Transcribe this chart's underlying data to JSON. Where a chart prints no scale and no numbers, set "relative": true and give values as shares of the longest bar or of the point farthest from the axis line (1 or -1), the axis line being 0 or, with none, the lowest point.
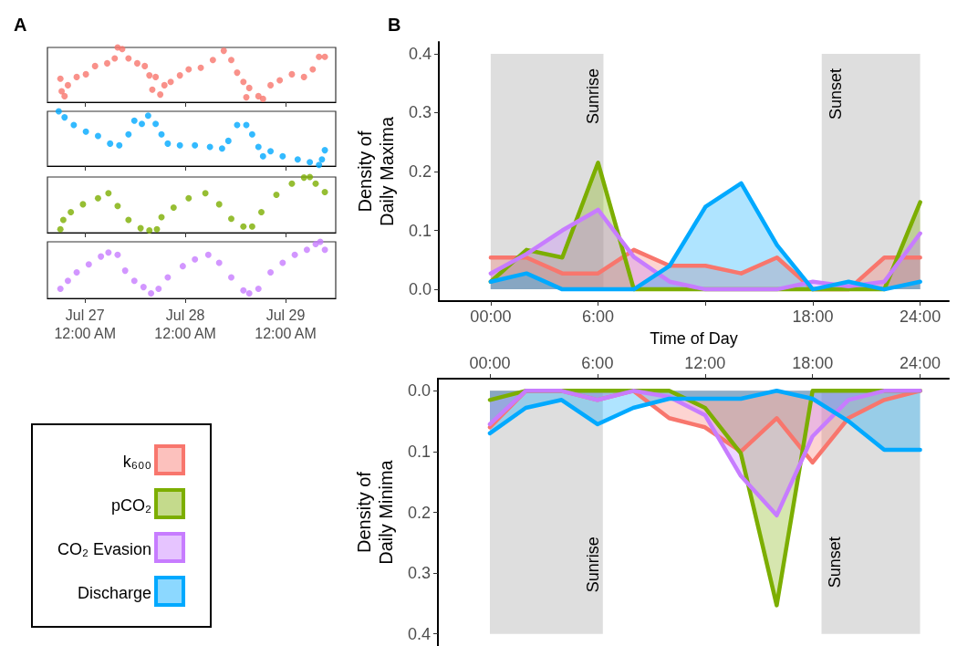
{
  "chart_data": [
    {
      "type": "scatter",
      "title": "A",
      "relative": true,
      "marker": "circle",
      "tick_labels": false,
      "xlim": [
        "--07-26T15:00",
        "--07-29T12:00"
      ],
      "xticks": [
        {
          "value": "--07-27T00:00",
          "label": null
        },
        {
          "value": "--07-28T00:00",
          "label": null
        },
        {
          "value": "--07-29T00:00",
          "label": null
        }
      ],
      "series": [
        {
          "color": "#f8766d",
          "x": [
            "--07-26T18:06",
            "--07-26T18:24",
            "--07-26T19:06",
            "--07-26T19:54",
            "--07-26T22:00",
            "--07-27T00:12",
            "--07-27T02:24",
            "--07-27T05:18",
            "--07-27T07:06",
            "--07-27T07:48",
            "--07-27T08:54",
            "--07-27T10:24",
            "--07-27T12:30",
            "--07-27T14:18",
            "--07-27T15:24",
            "--07-27T16:06",
            "--07-27T16:54",
            "--07-27T18:00",
            "--07-27T19:00",
            "--07-27T20:30",
            "--07-27T22:42",
            "--07-28T00:48",
            "--07-28T03:42",
            "--07-28T06:36",
            "--07-28T09:12",
            "--07-28T11:00",
            "--07-28T12:24",
            "--07-28T13:54",
            "--07-28T14:36",
            "--07-28T15:18",
            "--07-28T17:30",
            "--07-28T18:36",
            "--07-28T20:24",
            "--07-28T22:36",
            "--07-29T01:30",
            "--07-29T04:24",
            "--07-29T06:30",
            "--07-29T08:00",
            "--07-29T09:24"
          ],
          "values": [
            0.43,
            0.2,
            0.11,
            0.31,
            0.46,
            0.51,
            0.66,
            0.71,
            0.8,
            1,
            0.97,
            0.8,
            0.71,
            0.66,
            0.49,
            0.23,
            0.46,
            0.14,
            0.31,
            0.37,
            0.49,
            0.6,
            0.63,
            0.77,
            0.94,
            0.77,
            0.54,
            0.37,
            0.09,
            0.26,
            0.11,
            0.06,
            0.31,
            0.4,
            0.51,
            0.46,
            0.6,
            0.83,
            0.83
          ]
        }
      ]
    },
    {
      "type": "scatter",
      "relative": true,
      "marker": "circle",
      "tick_labels": false,
      "xlim": [
        "--07-26T15:00",
        "--07-29T12:00"
      ],
      "xticks": [
        {
          "value": "--07-27T00:00",
          "label": null
        },
        {
          "value": "--07-28T00:00",
          "label": null
        },
        {
          "value": "--07-29T00:00",
          "label": null
        }
      ],
      "series": [
        {
          "color": "#00a9ff",
          "x": [
            "--07-26T17:42",
            "--07-26T19:06",
            "--07-26T21:18",
            "--07-27T00:12",
            "--07-27T03:06",
            "--07-27T06:00",
            "--07-27T08:12",
            "--07-27T10:24",
            "--07-27T11:48",
            "--07-27T13:36",
            "--07-27T15:06",
            "--07-27T16:54",
            "--07-27T18:18",
            "--07-27T19:48",
            "--07-27T22:42",
            "--07-28T02:18",
            "--07-28T05:54",
            "--07-28T08:48",
            "--07-28T10:18",
            "--07-28T12:24",
            "--07-28T14:36",
            "--07-28T16:00",
            "--07-28T17:30",
            "--07-28T18:36",
            "--07-28T20:24",
            "--07-28T23:18",
            "--07-29T02:54",
            "--07-29T05:48",
            "--07-29T08:00",
            "--07-29T08:42",
            "--07-29T09:24"
          ],
          "values": [
            1,
            0.89,
            0.75,
            0.63,
            0.55,
            0.41,
            0.38,
            0.58,
            0.83,
            0.77,
            0.92,
            0.77,
            0.58,
            0.41,
            0.38,
            0.38,
            0.35,
            0.32,
            0.46,
            0.75,
            0.75,
            0.58,
            0.35,
            0.18,
            0.27,
            0.18,
            0.12,
            0.07,
            0.02,
            0.12,
            0.29
          ]
        }
      ]
    },
    {
      "type": "scatter",
      "relative": true,
      "marker": "circle",
      "tick_labels": false,
      "xlim": [
        "--07-26T15:00",
        "--07-29T12:00"
      ],
      "xticks": [
        {
          "value": "--07-27T00:00",
          "label": null
        },
        {
          "value": "--07-28T00:00",
          "label": null
        },
        {
          "value": "--07-29T00:00",
          "label": null
        }
      ],
      "series": [
        {
          "color": "#7cae00",
          "x": [
            "--07-26T18:06",
            "--07-26T18:48",
            "--07-26T20:36",
            "--07-26T23:30",
            "--07-27T03:06",
            "--07-27T05:36",
            "--07-27T07:48",
            "--07-27T10:24",
            "--07-27T13:18",
            "--07-27T15:24",
            "--07-27T17:12",
            "--07-27T18:18",
            "--07-27T21:12",
            "--07-28T00:48",
            "--07-28T04:48",
            "--07-28T08:06",
            "--07-28T11:00",
            "--07-28T13:54",
            "--07-28T16:00",
            "--07-28T18:12",
            "--07-28T21:48",
            "--07-29T01:30",
            "--07-29T04:24",
            "--07-29T05:48",
            "--07-29T07:12",
            "--07-29T09:24"
          ],
          "values": [
            0.06,
            0.23,
            0.37,
            0.51,
            0.62,
            0.71,
            0.48,
            0.23,
            0.08,
            0.04,
            0.06,
            0.28,
            0.45,
            0.62,
            0.71,
            0.51,
            0.25,
            0.11,
            0.11,
            0.37,
            0.68,
            0.88,
            0.99,
            1,
            0.88,
            0.73
          ]
        }
      ]
    },
    {
      "type": "scatter",
      "relative": true,
      "marker": "circle",
      "tick_labels": "x",
      "xlim": [
        "--07-26T15:00",
        "--07-29T12:00"
      ],
      "xticks": [
        {
          "value": "--07-27T00:00",
          "label": "Jul 27\n12:00 AM"
        },
        {
          "value": "--07-28T00:00",
          "label": "Jul 28\n12:00 AM"
        },
        {
          "value": "--07-29T00:00",
          "label": "Jul 29\n12:00 AM"
        }
      ],
      "series": [
        {
          "color": "#c77cff",
          "x": [
            "--07-26T18:06",
            "--07-26T19:54",
            "--07-26T22:00",
            "--07-27T00:54",
            "--07-27T03:48",
            "--07-27T05:36",
            "--07-27T07:48",
            "--07-27T09:36",
            "--07-27T11:48",
            "--07-27T14:00",
            "--07-27T15:48",
            "--07-27T17:36",
            "--07-27T19:48",
            "--07-27T23:24",
            "--07-28T02:18",
            "--07-28T05:30",
            "--07-28T08:06",
            "--07-28T11:00",
            "--07-28T13:54",
            "--07-28T15:18",
            "--07-28T17:30",
            "--07-28T20:24",
            "--07-28T23:18",
            "--07-29T02:12",
            "--07-29T05:06",
            "--07-29T07:12",
            "--07-29T08:18",
            "--07-29T09:24"
          ],
          "values": [
            0.17,
            0.31,
            0.46,
            0.6,
            0.74,
            0.81,
            0.77,
            0.49,
            0.31,
            0.2,
            0.09,
            0.17,
            0.37,
            0.57,
            0.69,
            0.77,
            0.63,
            0.37,
            0.14,
            0.09,
            0.17,
            0.46,
            0.63,
            0.77,
            0.86,
            0.96,
            1,
            0.86
          ]
        }
      ]
    },
    {
      "type": "area",
      "title": "B",
      "xlabel": "Time of Day",
      "ylabel": "Density of\nDaily Maxima",
      "marker": "none",
      "tick_labels": true,
      "x": [
        0,
        2,
        4,
        6,
        8,
        10,
        12,
        14,
        16,
        18,
        20,
        22,
        24
      ],
      "xlim": [
        -2.9,
        25.6
      ],
      "ylim": [
        -0.02,
        0.42
      ],
      "xticks": [
        {
          "value": 0,
          "label": "00:00"
        },
        {
          "value": 6,
          "label": "6:00"
        },
        {
          "value": 12,
          "label": null
        },
        {
          "value": 18,
          "label": "18:00"
        },
        {
          "value": 24,
          "label": "24:00"
        }
      ],
      "yticks": [
        {
          "value": 0,
          "label": "0.0"
        },
        {
          "value": 0.1,
          "label": "0.1"
        },
        {
          "value": 0.2,
          "label": "0.2"
        },
        {
          "value": 0.3,
          "label": "0.3"
        },
        {
          "value": 0.4,
          "label": "0.4"
        }
      ],
      "bands": [
        {
          "axis": "x",
          "from": 0,
          "to": 6.3,
          "label": "Sunrise",
          "color": "#dedede"
        },
        {
          "axis": "x",
          "from": 18.5,
          "to": 24,
          "label": "Sunset",
          "color": "#dedede"
        }
      ],
      "series": [
        {
          "color": "#f8766d",
          "values": [
            0.054,
            0.054,
            0.027,
            0.027,
            0.067,
            0.04,
            0.04,
            0.027,
            0.054,
            0,
            0,
            0.054,
            0.054
          ]
        },
        {
          "color": "#7cae00",
          "values": [
            0.013,
            0.067,
            0.054,
            0.215,
            0,
            0,
            0,
            0,
            0,
            0,
            0,
            0,
            0.148
          ]
        },
        {
          "color": "#c77cff",
          "values": [
            0.027,
            0.06,
            0.1,
            0.135,
            0.055,
            0.013,
            0,
            0,
            0,
            0.013,
            0.005,
            0.013,
            0.095
          ]
        },
        {
          "color": "#00a9ff",
          "values": [
            0.013,
            0.027,
            0,
            0,
            0,
            0.04,
            0.14,
            0.18,
            0.075,
            0,
            0.013,
            0,
            0.013
          ]
        }
      ]
    },
    {
      "type": "area",
      "ylabel": "Density of\nDaily Minima",
      "marker": "none",
      "legend": "left",
      "x": [
        0,
        2,
        4,
        6,
        8,
        10,
        12,
        14,
        16,
        18,
        20,
        22,
        24
      ],
      "xlim": [
        -2.9,
        25.6
      ],
      "ylim": [
        0.42,
        -0.02
      ],
      "xticks": [
        {
          "value": 0,
          "label": "00:00"
        },
        {
          "value": 6,
          "label": "6:00"
        },
        {
          "value": 12,
          "label": "12:00"
        },
        {
          "value": 18,
          "label": "18:00"
        },
        {
          "value": 24,
          "label": "24:00"
        }
      ],
      "yticks": [
        {
          "value": 0,
          "label": "0.0"
        },
        {
          "value": 0.1,
          "label": "0.1"
        },
        {
          "value": 0.2,
          "label": "0.2"
        },
        {
          "value": 0.3,
          "label": "0.3"
        },
        {
          "value": 0.4,
          "label": "0.4"
        }
      ],
      "bands": [
        {
          "axis": "x",
          "from": 0,
          "to": 6.3,
          "label": "Sunrise",
          "color": "#dedede"
        },
        {
          "axis": "x",
          "from": 18.5,
          "to": 24,
          "label": "Sunset",
          "color": "#dedede"
        }
      ],
      "series": [
        {
          "name": "k₆₀₀",
          "color": "#f8766d",
          "values": [
            0.06,
            0,
            0,
            0.015,
            0,
            0.045,
            0.06,
            0.1,
            0.045,
            0.118,
            0.045,
            0.015,
            0
          ]
        },
        {
          "name": "pCO₂",
          "color": "#7cae00",
          "values": [
            0.015,
            0,
            0,
            0,
            0,
            0,
            0.028,
            0.103,
            0.353,
            0,
            0,
            0,
            0
          ]
        },
        {
          "name": "CO₂ Evasion",
          "color": "#c77cff",
          "values": [
            0.055,
            0,
            0,
            0.015,
            0,
            0.01,
            0.04,
            0.14,
            0.205,
            0.075,
            0.015,
            0,
            0
          ]
        },
        {
          "name": "Discharge",
          "color": "#00a9ff",
          "values": [
            0.07,
            0.028,
            0.015,
            0.055,
            0.028,
            0.013,
            0.013,
            0.013,
            0,
            0.013,
            0.05,
            0.097,
            0.097
          ]
        }
      ]
    }
  ]
}
